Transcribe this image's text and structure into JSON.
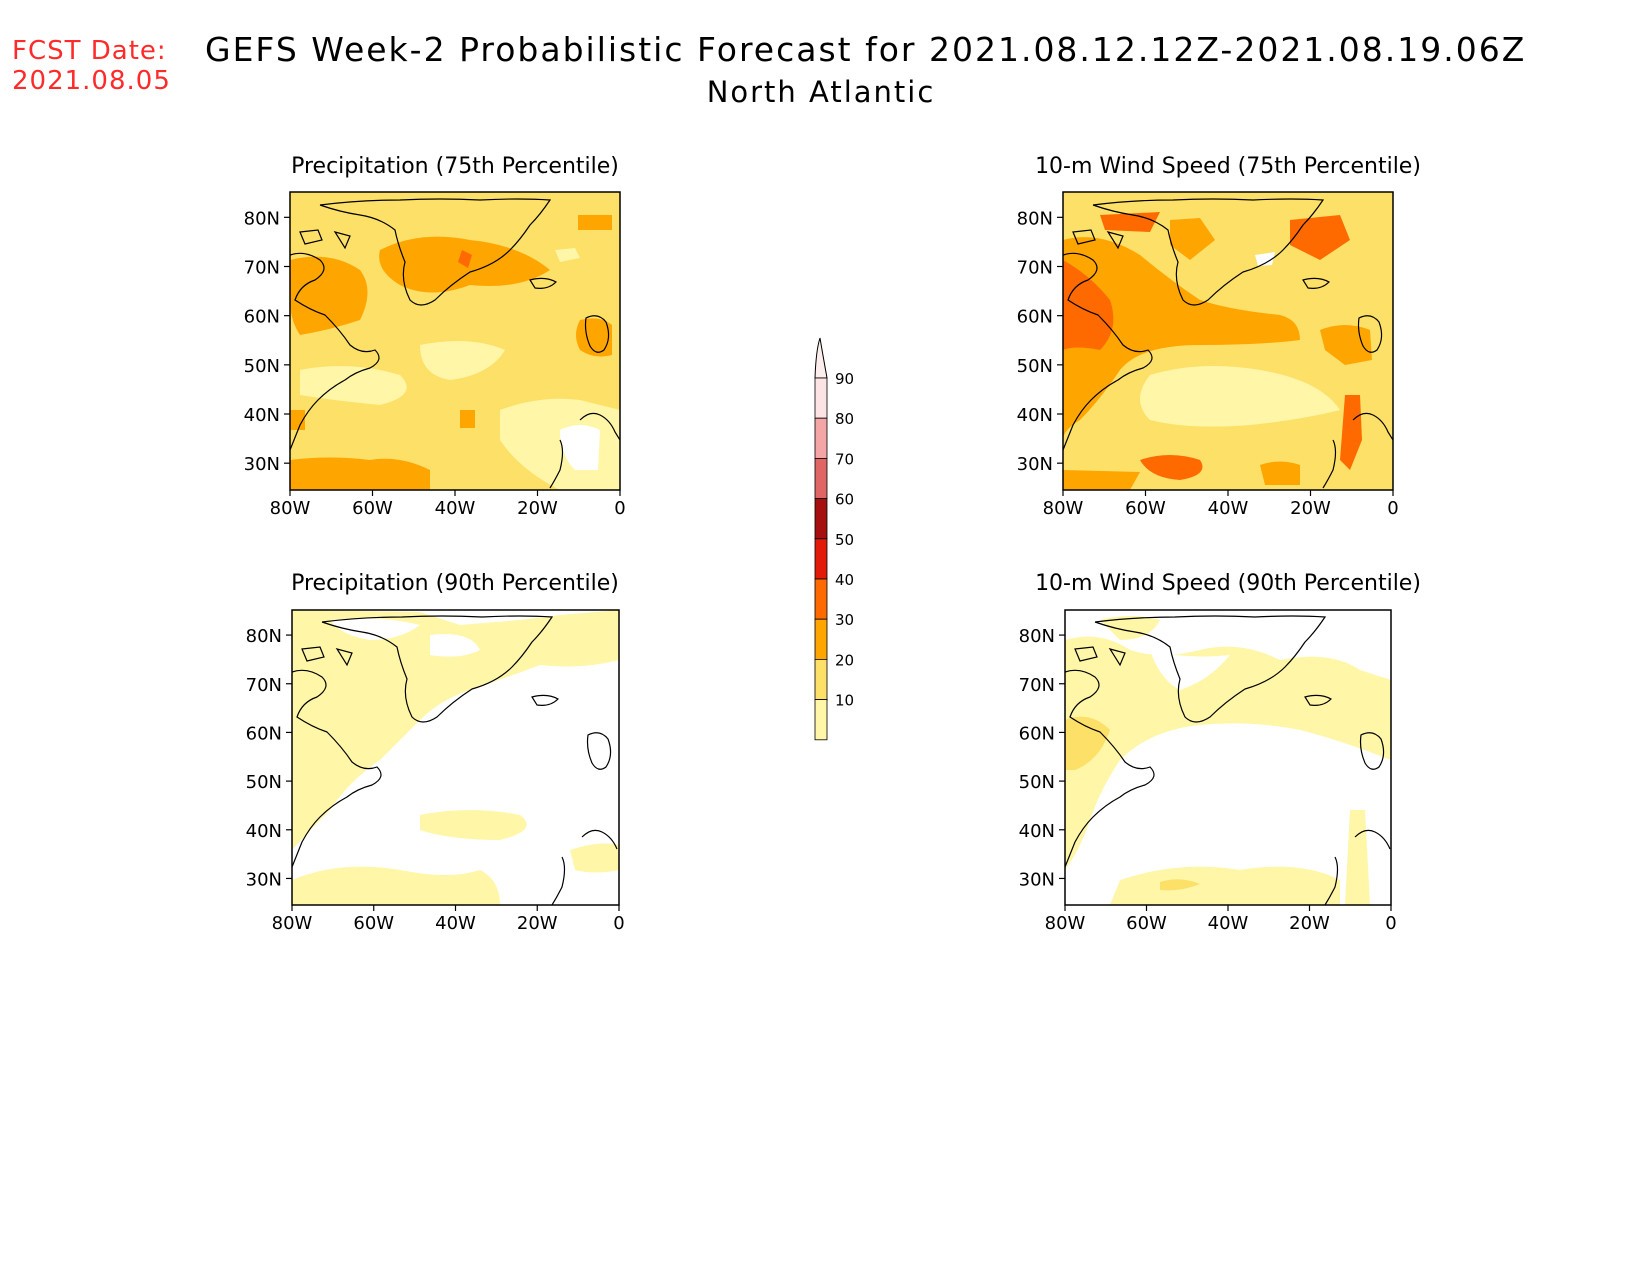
{
  "header": {
    "fcst_label": "FCST Date:",
    "fcst_date": "2021.08.05",
    "title": "GEFS Week-2 Probabilistic Forecast for 2021.08.12.12Z-2021.08.19.06Z",
    "region": "North Atlantic"
  },
  "axes": {
    "lat_labels": [
      "80N",
      "70N",
      "60N",
      "50N",
      "40N",
      "30N"
    ],
    "lon_labels": [
      "80W",
      "60W",
      "40W",
      "20W",
      "0"
    ]
  },
  "panels": [
    {
      "id": "precip-75",
      "title": "Precipitation (75th Percentile)"
    },
    {
      "id": "wind-75",
      "title": "10-m Wind Speed (75th Percentile)"
    },
    {
      "id": "precip-90",
      "title": "Precipitation (90th Percentile)"
    },
    {
      "id": "wind-90",
      "title": "10-m Wind Speed (90th Percentile)"
    }
  ],
  "colorbar": {
    "labels": [
      "90",
      "80",
      "70",
      "60",
      "50",
      "40",
      "30",
      "20",
      "10"
    ],
    "colors": [
      "#fde4e4",
      "#f4a6a6",
      "#e06666",
      "#a50f0f",
      "#e31a0a",
      "#ff6a00",
      "#ffa500",
      "#fde068",
      "#fff6a8"
    ]
  },
  "colors": {
    "fcst_text": "#ff2a2a",
    "level_10_20": "#fff6a8",
    "level_20_30": "#fde068",
    "level_30_40": "#ffa500",
    "level_40_50": "#ff6a00"
  }
}
